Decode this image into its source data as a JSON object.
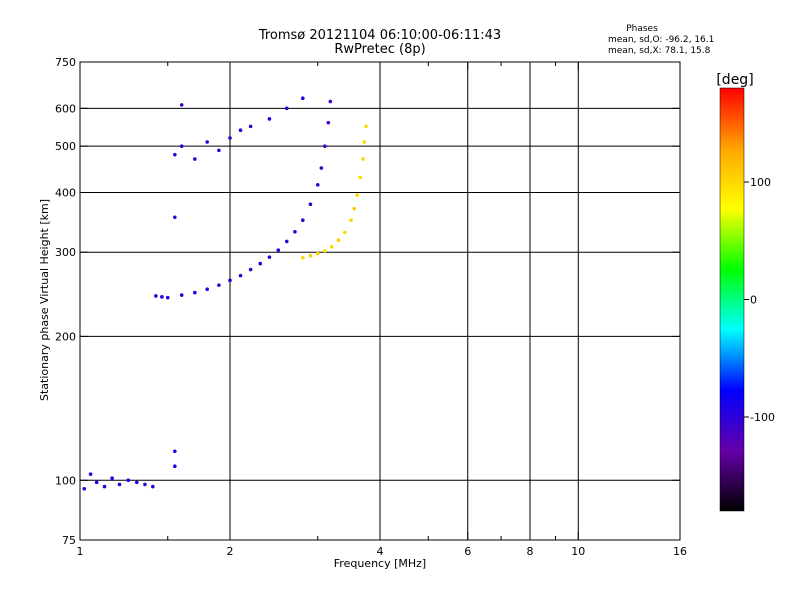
{
  "chart_data": {
    "type": "scatter",
    "title": "Tromsø 20121104 06:10:00-06:11:43",
    "subtitle": "RwPretec (8p)",
    "xlabel": "Frequency [MHz]",
    "ylabel": "Stationary phase Virtual Height [km]",
    "x_scale": "log",
    "y_scale": "log",
    "xlim": [
      1,
      16
    ],
    "ylim": [
      75,
      750
    ],
    "x_ticks": [
      1,
      2,
      4,
      6,
      8,
      10,
      16
    ],
    "x_tick_labels": [
      "1",
      "2",
      "4",
      "6",
      "8",
      "10",
      "16"
    ],
    "x_minor_ticks": [
      1.5,
      3,
      5,
      7,
      9
    ],
    "y_ticks": [
      75,
      100,
      200,
      300,
      400,
      500,
      600,
      750
    ],
    "y_tick_labels": [
      "75",
      "100",
      "200",
      "300",
      "400",
      "500",
      "600",
      "750"
    ],
    "x_gridlines": [
      2,
      4,
      6,
      8,
      10
    ],
    "y_gridlines": [
      100,
      200,
      300,
      400,
      500,
      600
    ],
    "grid": true,
    "phases_header": "Phases",
    "phases_stats": [
      "mean, sd,O: -96.2, 16.1",
      "mean, sd,X:  78.1, 15.8"
    ],
    "colorbar": {
      "label": "[deg]",
      "min": -180,
      "max": 180,
      "ticks": [
        100,
        0,
        -100
      ],
      "tick_labels": [
        "100",
        "0",
        "-100"
      ],
      "colors": [
        "#ff0000",
        "#ffa500",
        "#ffff00",
        "#00ff00",
        "#00ffff",
        "#0000ff",
        "#6600aa",
        "#000000"
      ]
    },
    "series": [
      {
        "points": [
          [
            1.02,
            96,
            -100
          ],
          [
            1.05,
            103,
            -95
          ],
          [
            1.08,
            99,
            -90
          ],
          [
            1.12,
            97,
            -100
          ],
          [
            1.16,
            101,
            -95
          ],
          [
            1.2,
            98,
            -100
          ],
          [
            1.25,
            100,
            -90
          ],
          [
            1.3,
            99,
            -95
          ],
          [
            1.35,
            98,
            -100
          ],
          [
            1.4,
            97,
            -100
          ],
          [
            1.42,
            243,
            -100
          ],
          [
            1.46,
            242,
            -95
          ],
          [
            1.5,
            241,
            -100
          ],
          [
            1.6,
            244,
            -100
          ],
          [
            1.7,
            247,
            -95
          ],
          [
            1.8,
            251,
            -100
          ],
          [
            1.9,
            256,
            -95
          ],
          [
            2.0,
            262,
            -100
          ],
          [
            2.1,
            268,
            -95
          ],
          [
            2.2,
            276,
            -100
          ],
          [
            2.3,
            284,
            -95
          ],
          [
            2.4,
            293,
            -100
          ],
          [
            2.5,
            303,
            -95
          ],
          [
            2.6,
            316,
            -100
          ],
          [
            2.7,
            331,
            -95
          ],
          [
            2.8,
            350,
            -100
          ],
          [
            2.9,
            378,
            -100
          ],
          [
            3.0,
            415,
            -105
          ],
          [
            3.05,
            450,
            -105
          ],
          [
            3.1,
            500,
            -110
          ],
          [
            3.15,
            560,
            -110
          ],
          [
            3.18,
            620,
            -115
          ],
          [
            1.55,
            480,
            -100
          ],
          [
            1.6,
            500,
            -95
          ],
          [
            1.7,
            470,
            -105
          ],
          [
            1.8,
            510,
            -100
          ],
          [
            1.9,
            490,
            -95
          ],
          [
            2.0,
            520,
            -100
          ],
          [
            2.1,
            540,
            -95
          ],
          [
            2.2,
            550,
            -100
          ],
          [
            2.4,
            570,
            -95
          ],
          [
            2.6,
            600,
            -100
          ],
          [
            2.8,
            630,
            -95
          ],
          [
            1.6,
            610,
            -110
          ],
          [
            1.55,
            355,
            -100
          ],
          [
            1.55,
            115,
            -90
          ],
          [
            1.55,
            107,
            -90
          ]
        ]
      },
      {
        "points": [
          [
            2.8,
            292,
            100
          ],
          [
            2.9,
            295,
            105
          ],
          [
            3.0,
            298,
            100
          ],
          [
            3.1,
            302,
            95
          ],
          [
            3.2,
            308,
            100
          ],
          [
            3.3,
            318,
            105
          ],
          [
            3.4,
            330,
            100
          ],
          [
            3.5,
            350,
            100
          ],
          [
            3.55,
            370,
            105
          ],
          [
            3.6,
            395,
            100
          ],
          [
            3.65,
            430,
            100
          ],
          [
            3.7,
            470,
            100
          ],
          [
            3.72,
            510,
            100
          ],
          [
            3.75,
            550,
            100
          ]
        ]
      }
    ]
  }
}
